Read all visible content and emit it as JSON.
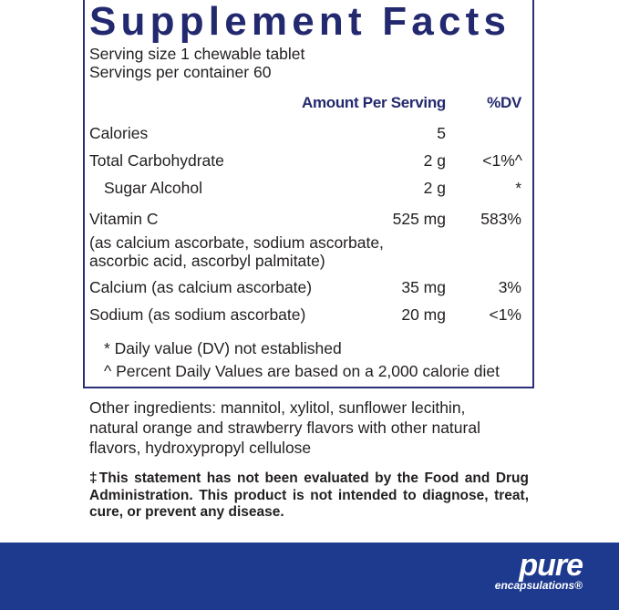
{
  "title": "Supplement Facts",
  "serving_size": "Serving size  1 chewable tablet",
  "servings_per_container": "Servings per container  60",
  "headers": {
    "amount": "Amount Per Serving",
    "dv": "%DV"
  },
  "rows": [
    {
      "name": "Calories",
      "amount": "5",
      "dv": ""
    },
    {
      "name": "Total Carbohydrate",
      "amount": "2 g",
      "dv": "<1%^"
    },
    {
      "name": "Sugar Alcohol",
      "amount": "2 g",
      "dv": "*"
    },
    {
      "name": "Vitamin C",
      "amount": "525 mg",
      "dv": "583%",
      "note_lines": [
        "(as calcium ascorbate, sodium ascorbate,",
        "ascorbic acid, ascorbyl palmitate)"
      ]
    },
    {
      "name": "Calcium (as calcium ascorbate)",
      "amount": "35 mg",
      "dv": "3%"
    },
    {
      "name": "Sodium (as sodium ascorbate)",
      "amount": "20 mg",
      "dv": "<1%"
    }
  ],
  "footnotes": [
    "* Daily value (DV) not established",
    "^ Percent Daily Values are based on a 2,000 calorie diet"
  ],
  "other_ingredients": [
    "Other ingredients: mannitol, xylitol, sunflower lecithin,",
    "natural orange and strawberry flavors with other natural",
    "flavors, hydroxypropyl cellulose"
  ],
  "disclaimer": "‡This statement has not been evaluated by the Food and Drug Administration. This product is not intended to diagnose, treat, cure, or prevent any disease.",
  "brand": {
    "name": "pure",
    "sub": "encapsulations®"
  },
  "colors": {
    "navy": "#23296e",
    "band": "#1e3a8e"
  }
}
